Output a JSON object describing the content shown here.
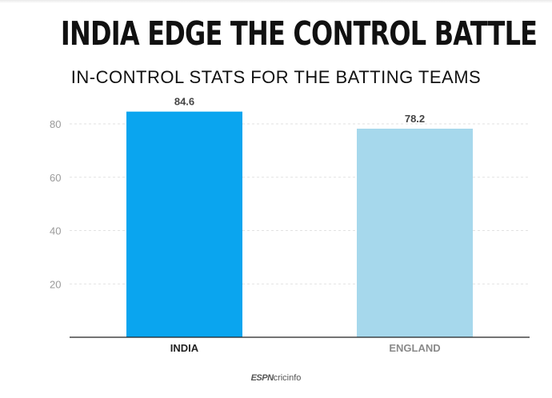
{
  "title": "INDIA EDGE THE CONTROL BATTLE",
  "subtitle": "IN-CONTROL STATS FOR THE BATTING TEAMS",
  "footer": {
    "brand_espn": "ESPN",
    "brand_site": "cricinfo"
  },
  "chart_data": {
    "type": "bar",
    "title": "INDIA EDGE THE CONTROL BATTLE",
    "subtitle": "IN-CONTROL STATS FOR THE BATTING TEAMS",
    "categories": [
      "INDIA",
      "ENGLAND"
    ],
    "values": [
      84.6,
      78.2
    ],
    "value_labels": [
      "84.6",
      "78.2"
    ],
    "bar_colors": [
      "#0aa5ef",
      "#a6d8ec"
    ],
    "category_label_colors": [
      "#222222",
      "#8a8a8a"
    ],
    "yticks": [
      20,
      40,
      60,
      80
    ],
    "ylim": [
      0,
      85
    ],
    "grid": true,
    "xlabel": "",
    "ylabel": ""
  }
}
